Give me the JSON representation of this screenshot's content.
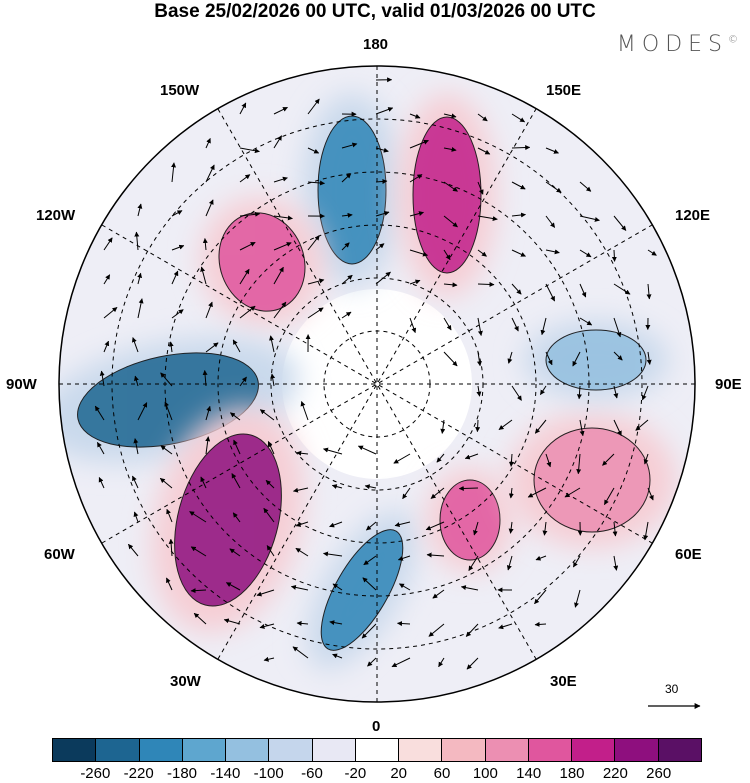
{
  "title": "Base 25/02/2026 00 UTC, valid 01/03/2026 00 UTC",
  "brand": "MODES",
  "brand_mark": "©",
  "longitude_labels": {
    "top": "180",
    "bottom": "0",
    "left": "90W",
    "right": "90E",
    "upper_left_30": "150W",
    "upper_left_60": "120W",
    "upper_right_30": "150E",
    "upper_right_60": "120E",
    "lower_left_60": "60W",
    "lower_left_30": "30W",
    "lower_right_60": "60E",
    "lower_right_30": "30E"
  },
  "reference_vector": {
    "label": "30"
  },
  "colorbar": {
    "colors": [
      "#0b3a5c",
      "#1d6591",
      "#2f86b8",
      "#5ea6cf",
      "#94c0e0",
      "#c5d6ec",
      "#e8e8f4",
      "#ffffff",
      "#f9dedd",
      "#f4b9c1",
      "#ec8fb2",
      "#e0569e",
      "#c21f8a",
      "#8e0f7e",
      "#5a1065"
    ],
    "tick_labels": [
      "-260",
      "-220",
      "-180",
      "-140",
      "-100",
      "-60",
      "-20",
      "20",
      "60",
      "100",
      "140",
      "180",
      "220",
      "260"
    ]
  },
  "anomaly_centers": [
    {
      "name": "blue-180",
      "value": -200,
      "color": "#2f86b8"
    },
    {
      "name": "magenta-160E",
      "value": 200,
      "color": "#c21f8a"
    },
    {
      "name": "pink-140W",
      "value": 140,
      "color": "#e0569e"
    },
    {
      "name": "blue-90W",
      "value": -200,
      "color": "#1d6591"
    },
    {
      "name": "purple-60W",
      "value": 240,
      "color": "#8e0f7e"
    },
    {
      "name": "blue-10W",
      "value": -160,
      "color": "#2f86b8"
    },
    {
      "name": "pink-45E",
      "value": 140,
      "color": "#e0569e"
    },
    {
      "name": "pink-75E",
      "value": 120,
      "color": "#ec8fb2"
    },
    {
      "name": "lightblue-100E",
      "value": -100,
      "color": "#94c0e0"
    }
  ]
}
